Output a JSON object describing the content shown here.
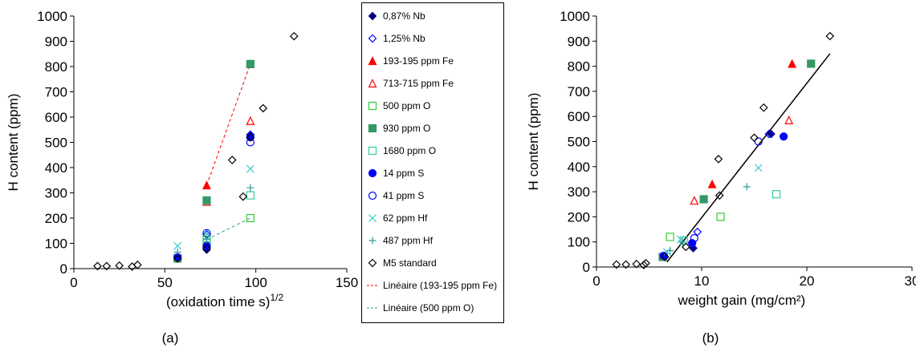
{
  "chart_data": [
    {
      "type": "scatter",
      "x_label": "(oxidation time s)",
      "x_label_superscript": "1/2",
      "y_label": "H content (ppm)",
      "panel_label": "(a)",
      "xlim": [
        0,
        150
      ],
      "xticks": [
        0,
        50,
        100,
        150
      ],
      "ylim": [
        0,
        1000
      ],
      "yticks": [
        0,
        100,
        200,
        300,
        400,
        500,
        600,
        700,
        800,
        900,
        1000
      ],
      "series": [
        {
          "name": "0,87% Nb",
          "color": "#000080",
          "marker": "diamond",
          "x": [
            73,
            73,
            97,
            97
          ],
          "values": [
            75,
            85,
            520,
            530
          ]
        },
        {
          "name": "1,25% Nb",
          "color": "#0000ff",
          "marker": "diamond-open",
          "x": [
            73,
            97
          ],
          "values": [
            135,
            530
          ]
        },
        {
          "name": "193-195 ppm Fe",
          "color": "#ff0000",
          "marker": "triangle",
          "x": [
            73,
            97
          ],
          "values": [
            330,
            810
          ]
        },
        {
          "name": "713-715 ppm Fe",
          "color": "#ff0000",
          "marker": "triangle-open",
          "x": [
            73,
            97
          ],
          "values": [
            265,
            585
          ]
        },
        {
          "name": "500 ppm O",
          "color": "#33cc33",
          "marker": "square-open",
          "x": [
            73,
            97
          ],
          "values": [
            120,
            200
          ]
        },
        {
          "name": "930 ppm O",
          "color": "#339966",
          "marker": "square",
          "x": [
            57,
            73,
            97
          ],
          "values": [
            40,
            270,
            810
          ]
        },
        {
          "name": "1680 ppm O",
          "color": "#33cc99",
          "marker": "square-open",
          "x": [
            73,
            97
          ],
          "values": [
            105,
            290
          ]
        },
        {
          "name": "14 ppm S",
          "color": "#0000ff",
          "marker": "circle",
          "x": [
            57,
            73,
            97
          ],
          "values": [
            45,
            90,
            520
          ]
        },
        {
          "name": "41 ppm S",
          "color": "#0000ff",
          "marker": "circle-open",
          "x": [
            73,
            97
          ],
          "values": [
            140,
            500
          ]
        },
        {
          "name": "62 ppm Hf",
          "color": "#33cccc",
          "marker": "x",
          "x": [
            57,
            73,
            97
          ],
          "values": [
            90,
            140,
            395
          ]
        },
        {
          "name": "487 ppm Hf",
          "color": "#339999",
          "marker": "plus",
          "x": [
            57,
            73,
            97
          ],
          "values": [
            65,
            115,
            320
          ]
        },
        {
          "name": "M5 standard",
          "color": "#000000",
          "marker": "diamond-open",
          "x": [
            13,
            18,
            25,
            32,
            35,
            57,
            73,
            87,
            93,
            97,
            104,
            121
          ],
          "values": [
            10,
            10,
            12,
            8,
            15,
            40,
            80,
            430,
            285,
            520,
            635,
            920
          ]
        }
      ],
      "fits": [
        {
          "name": "Linéaire (193-195 ppm Fe)",
          "color": "#ff0000",
          "x": [
            73,
            97
          ],
          "y": [
            330,
            810
          ]
        },
        {
          "name": "Linéaire (500 ppm O)",
          "color": "#339999",
          "x": [
            73,
            97
          ],
          "y": [
            115,
            200
          ]
        }
      ]
    },
    {
      "type": "scatter",
      "x_label": "weight gain (mg/cm²)",
      "y_label": "H content (ppm)",
      "panel_label": "(b)",
      "xlim": [
        0,
        30
      ],
      "xticks": [
        0,
        10,
        20,
        30
      ],
      "ylim": [
        0,
        1000
      ],
      "yticks": [
        0,
        100,
        200,
        300,
        400,
        500,
        600,
        700,
        800,
        900,
        1000
      ],
      "series": [
        {
          "color": "#000080",
          "marker": "diamond",
          "x": [
            9.2,
            16.6
          ],
          "values": [
            75,
            530
          ]
        },
        {
          "color": "#0000ff",
          "marker": "diamond-open",
          "x": [
            9.6,
            16.4
          ],
          "values": [
            140,
            530
          ]
        },
        {
          "color": "#ff0000",
          "marker": "triangle",
          "x": [
            11,
            18.6
          ],
          "values": [
            330,
            810
          ]
        },
        {
          "color": "#ff0000",
          "marker": "triangle-open",
          "x": [
            9.3,
            18.3
          ],
          "values": [
            265,
            585
          ]
        },
        {
          "color": "#33cc33",
          "marker": "square-open",
          "x": [
            7,
            11.8
          ],
          "values": [
            120,
            200
          ]
        },
        {
          "color": "#339966",
          "marker": "square",
          "x": [
            6.3,
            10.2,
            20.4
          ],
          "values": [
            40,
            270,
            810
          ]
        },
        {
          "color": "#33cc99",
          "marker": "square-open",
          "x": [
            8.3,
            17.1
          ],
          "values": [
            105,
            290
          ]
        },
        {
          "color": "#0000ff",
          "marker": "circle",
          "x": [
            6.4,
            9.1,
            17.8
          ],
          "values": [
            45,
            95,
            520
          ]
        },
        {
          "color": "#0000ff",
          "marker": "circle-open",
          "x": [
            9.3,
            15.4
          ],
          "values": [
            115,
            500
          ]
        },
        {
          "color": "#33cccc",
          "marker": "x",
          "x": [
            6.7,
            8,
            15.4
          ],
          "values": [
            60,
            110,
            395
          ]
        },
        {
          "color": "#339999",
          "marker": "plus",
          "x": [
            7,
            8.2,
            14.3
          ],
          "values": [
            65,
            100,
            320
          ]
        },
        {
          "color": "#000000",
          "marker": "diamond-open",
          "x": [
            1.9,
            2.8,
            3.8,
            4.5,
            4.7,
            6.5,
            8.5,
            11.6,
            11.7,
            15,
            15.9,
            22.2
          ],
          "values": [
            10,
            10,
            12,
            8,
            15,
            40,
            80,
            430,
            285,
            515,
            635,
            920
          ]
        }
      ],
      "trendline": {
        "color": "#000000",
        "x": [
          6.7,
          22.2
        ],
        "y": [
          20,
          850
        ]
      }
    }
  ]
}
